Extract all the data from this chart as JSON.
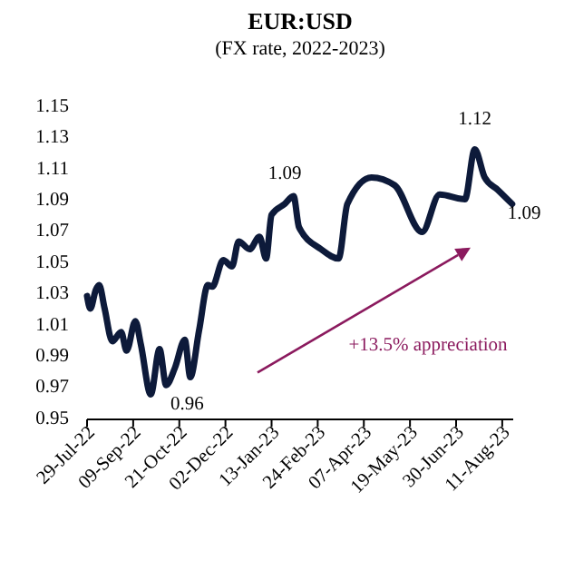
{
  "chart_data": {
    "type": "line",
    "title": "EUR:USD",
    "subtitle": "(FX rate, 2022-2023)",
    "x": [
      "2022-07-29",
      "2022-08-01",
      "2022-08-06",
      "2022-08-09",
      "2022-08-14",
      "2022-08-21",
      "2022-08-29",
      "2022-09-03",
      "2022-09-11",
      "2022-09-16",
      "2022-09-25",
      "2022-10-03",
      "2022-10-09",
      "2022-10-17",
      "2022-10-26",
      "2022-10-31",
      "2022-11-08",
      "2022-11-16",
      "2022-11-20",
      "2022-11-30",
      "2022-12-08",
      "2022-12-14",
      "2022-12-24",
      "2023-01-02",
      "2023-01-08",
      "2023-01-13",
      "2023-01-25",
      "2023-02-02",
      "2023-02-07",
      "2023-02-27",
      "2023-03-15",
      "2023-03-23",
      "2023-04-14",
      "2023-05-05",
      "2023-05-30",
      "2023-06-15",
      "2023-07-08",
      "2023-07-17",
      "2023-07-26",
      "2023-08-07",
      "2023-08-20"
    ],
    "series": [
      {
        "color": "#0d1a3a",
        "values": [
          1.029,
          1.021,
          1.033,
          1.036,
          1.021,
          1.0,
          1.006,
          0.994,
          1.013,
          0.998,
          0.966,
          0.995,
          0.972,
          0.983,
          1.001,
          0.977,
          1.007,
          1.036,
          1.035,
          1.052,
          1.048,
          1.064,
          1.059,
          1.067,
          1.053,
          1.081,
          1.088,
          1.093,
          1.073,
          1.059,
          1.053,
          1.088,
          1.105,
          1.1,
          1.07,
          1.094,
          1.091,
          1.123,
          1.105,
          1.097,
          1.088
        ]
      }
    ],
    "xlim": [
      "2022-07-29",
      "2023-08-21"
    ],
    "xticks": [
      {
        "value": "2022-07-29",
        "label": "29-Jul-22"
      },
      {
        "value": "2022-09-09",
        "label": "09-Sep-22"
      },
      {
        "value": "2022-10-21",
        "label": "21-Oct-22"
      },
      {
        "value": "2022-12-02",
        "label": "02-Dec-22"
      },
      {
        "value": "2023-01-13",
        "label": "13-Jan-23"
      },
      {
        "value": "2023-02-24",
        "label": "24-Feb-23"
      },
      {
        "value": "2023-04-07",
        "label": "07-Apr-23"
      },
      {
        "value": "2023-05-19",
        "label": "19-May-23"
      },
      {
        "value": "2023-06-30",
        "label": "30-Jun-23"
      },
      {
        "value": "2023-08-11",
        "label": "11-Aug-23"
      }
    ],
    "ylim": [
      0.95,
      1.15
    ],
    "yticks": [
      0.95,
      0.97,
      0.99,
      1.01,
      1.03,
      1.05,
      1.07,
      1.09,
      1.11,
      1.13,
      1.15
    ],
    "annotations": [
      {
        "text": "0.96",
        "x": "2022-09-25",
        "y": 0.966
      },
      {
        "text": "1.09",
        "x": "2023-01-25",
        "y": 1.088
      },
      {
        "text": "1.12",
        "x": "2023-07-17",
        "y": 1.123
      },
      {
        "text": "1.09",
        "x": "2023-08-20",
        "y": 1.088
      },
      "+13.5% appreciation"
    ],
    "grid": false,
    "marker": "none",
    "line_style": "solid"
  }
}
